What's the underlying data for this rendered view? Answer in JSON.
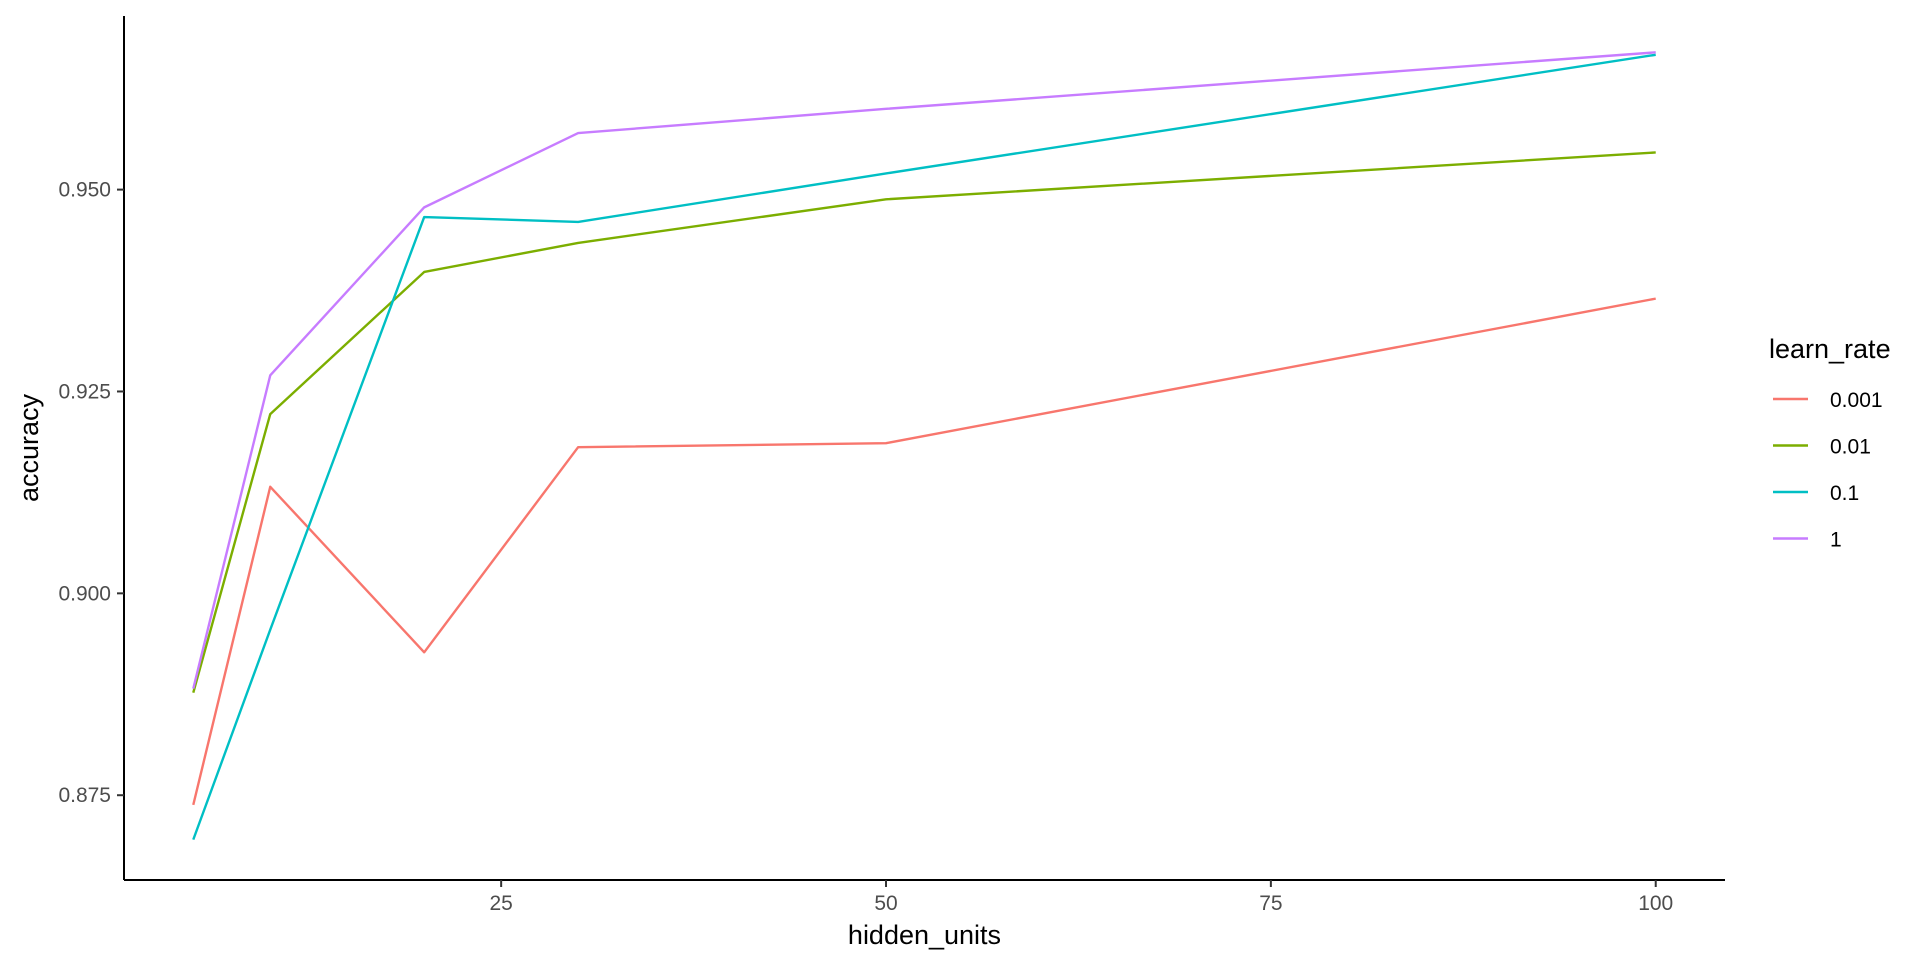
{
  "chart_data": {
    "type": "line",
    "title": "",
    "xlabel": "hidden_units",
    "ylabel": "accuracy",
    "xlim": [
      0.5,
      104.5
    ],
    "ylim": [
      0.8645,
      0.9715
    ],
    "x_ticks": [
      25,
      50,
      75,
      100
    ],
    "x_tick_labels": [
      "25",
      "50",
      "75",
      "100"
    ],
    "y_ticks": [
      0.875,
      0.9,
      0.925,
      0.95
    ],
    "y_tick_labels": [
      "0.875",
      "0.900",
      "0.925",
      "0.950"
    ],
    "grid": false,
    "legend": {
      "title": "learn_rate",
      "position": "right"
    },
    "x": [
      5,
      10,
      20,
      30,
      50,
      100
    ],
    "series": [
      {
        "name": "0.001",
        "color": "#F8766D",
        "values": [
          0.8738,
          0.9132,
          0.8927,
          0.9181,
          0.9186,
          0.9365
        ]
      },
      {
        "name": "0.01",
        "color": "#7CAE00",
        "values": [
          0.8877,
          0.9222,
          0.9398,
          0.9434,
          0.9488,
          0.9546
        ]
      },
      {
        "name": "0.1",
        "color": "#00BFC4",
        "values": [
          0.8695,
          0.8955,
          0.9466,
          0.946,
          0.952,
          0.9667
        ]
      },
      {
        "name": "1",
        "color": "#C77CFF",
        "values": [
          0.8882,
          0.927,
          0.9478,
          0.957,
          0.96,
          0.967
        ]
      }
    ]
  }
}
